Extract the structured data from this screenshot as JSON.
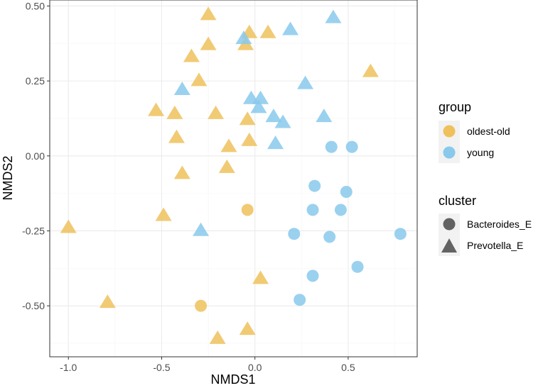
{
  "chart_data": {
    "type": "scatter",
    "title": "",
    "xlabel": "NMDS1",
    "ylabel": "NMDS2",
    "xlim": [
      -1.1,
      0.87
    ],
    "ylim": [
      -0.67,
      0.52
    ],
    "x_ticks": [
      -1.0,
      -0.5,
      0.0,
      0.5
    ],
    "x_tick_labels": [
      "-1.0",
      "-0.5",
      "0.0",
      "0.5"
    ],
    "y_ticks": [
      -0.5,
      -0.25,
      0.0,
      0.25,
      0.5
    ],
    "y_tick_labels": [
      "-0.50",
      "-0.25",
      "0.00",
      "0.25",
      "0.50"
    ],
    "grid": true,
    "colors": {
      "oldest-old": "#EFC15C",
      "young": "#88C9EC"
    },
    "legends": [
      {
        "title": "group",
        "type": "color",
        "entries": [
          {
            "label": "oldest-old",
            "key": "oldest-old"
          },
          {
            "label": "young",
            "key": "young"
          }
        ]
      },
      {
        "title": "cluster",
        "type": "shape",
        "entries": [
          {
            "label": "Bacteroides_E",
            "shape": "circle"
          },
          {
            "label": "Prevotella_E",
            "shape": "triangle"
          }
        ]
      }
    ],
    "series": [
      {
        "group": "oldest-old",
        "cluster": "Prevotella_E",
        "points": [
          [
            -0.25,
            0.47
          ],
          [
            -0.03,
            0.41
          ],
          [
            0.07,
            0.41
          ],
          [
            -0.25,
            0.37
          ],
          [
            -0.05,
            0.37
          ],
          [
            -0.34,
            0.33
          ],
          [
            0.62,
            0.28
          ],
          [
            -0.3,
            0.25
          ],
          [
            -0.53,
            0.15
          ],
          [
            -0.43,
            0.14
          ],
          [
            -0.21,
            0.14
          ],
          [
            -0.04,
            0.12
          ],
          [
            -0.42,
            0.06
          ],
          [
            -0.03,
            0.05
          ],
          [
            -0.14,
            0.03
          ],
          [
            -0.39,
            -0.06
          ],
          [
            -0.15,
            -0.04
          ],
          [
            -0.49,
            -0.2
          ],
          [
            -1.0,
            -0.24
          ],
          [
            0.03,
            -0.41
          ],
          [
            -0.79,
            -0.49
          ],
          [
            -0.04,
            -0.58
          ],
          [
            -0.2,
            -0.61
          ]
        ]
      },
      {
        "group": "oldest-old",
        "cluster": "Bacteroides_E",
        "points": [
          [
            -0.04,
            -0.18
          ],
          [
            -0.29,
            -0.5
          ]
        ]
      },
      {
        "group": "young",
        "cluster": "Prevotella_E",
        "points": [
          [
            0.42,
            0.46
          ],
          [
            0.19,
            0.42
          ],
          [
            -0.06,
            0.39
          ],
          [
            -0.39,
            0.22
          ],
          [
            0.27,
            0.24
          ],
          [
            -0.02,
            0.19
          ],
          [
            0.03,
            0.19
          ],
          [
            0.02,
            0.16
          ],
          [
            0.1,
            0.13
          ],
          [
            0.15,
            0.11
          ],
          [
            0.37,
            0.13
          ],
          [
            0.11,
            0.04
          ],
          [
            -0.29,
            -0.25
          ]
        ]
      },
      {
        "group": "young",
        "cluster": "Bacteroides_E",
        "points": [
          [
            0.41,
            0.03
          ],
          [
            0.52,
            0.03
          ],
          [
            0.32,
            -0.1
          ],
          [
            0.49,
            -0.12
          ],
          [
            0.31,
            -0.18
          ],
          [
            0.46,
            -0.18
          ],
          [
            0.21,
            -0.26
          ],
          [
            0.4,
            -0.27
          ],
          [
            0.78,
            -0.26
          ],
          [
            0.55,
            -0.37
          ],
          [
            0.31,
            -0.4
          ],
          [
            0.24,
            -0.48
          ]
        ]
      }
    ]
  }
}
